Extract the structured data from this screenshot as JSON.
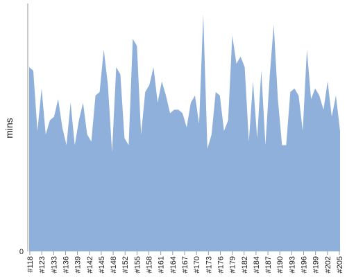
{
  "chart_data": {
    "type": "area",
    "title": "",
    "xlabel": "",
    "ylabel": "mins",
    "ylim": [
      0,
      70
    ],
    "grid": false,
    "legend": "none",
    "series_color": "#8fb0da",
    "axis_color": "#999999",
    "y_ticks": [
      {
        "value": 0,
        "label": "0"
      }
    ],
    "x_labels": [
      "#118",
      "#123",
      "#133",
      "#136",
      "#139",
      "#142",
      "#145",
      "#148",
      "#152",
      "#155",
      "#158",
      "#161",
      "#164",
      "#167",
      "#170",
      "#173",
      "#176",
      "#179",
      "#182",
      "#184",
      "#187",
      "#190",
      "#193",
      "#196",
      "#199",
      "#202",
      "#205"
    ],
    "values": [
      52,
      51,
      34,
      46,
      33,
      37,
      38,
      43,
      35,
      30,
      42,
      30,
      37,
      42,
      33,
      31,
      44,
      45,
      57,
      47,
      28,
      52,
      50,
      32,
      30,
      60,
      58,
      33,
      45,
      47,
      52,
      42,
      48,
      44,
      39,
      40,
      40,
      39,
      35,
      42,
      44,
      36,
      67,
      29,
      33,
      45,
      44,
      34,
      37,
      61,
      53,
      55,
      52,
      31,
      48,
      32,
      51,
      30,
      49,
      64,
      43,
      30,
      30,
      45,
      46,
      44,
      34,
      57,
      43,
      46,
      44,
      40,
      48,
      38,
      44,
      34
    ]
  }
}
